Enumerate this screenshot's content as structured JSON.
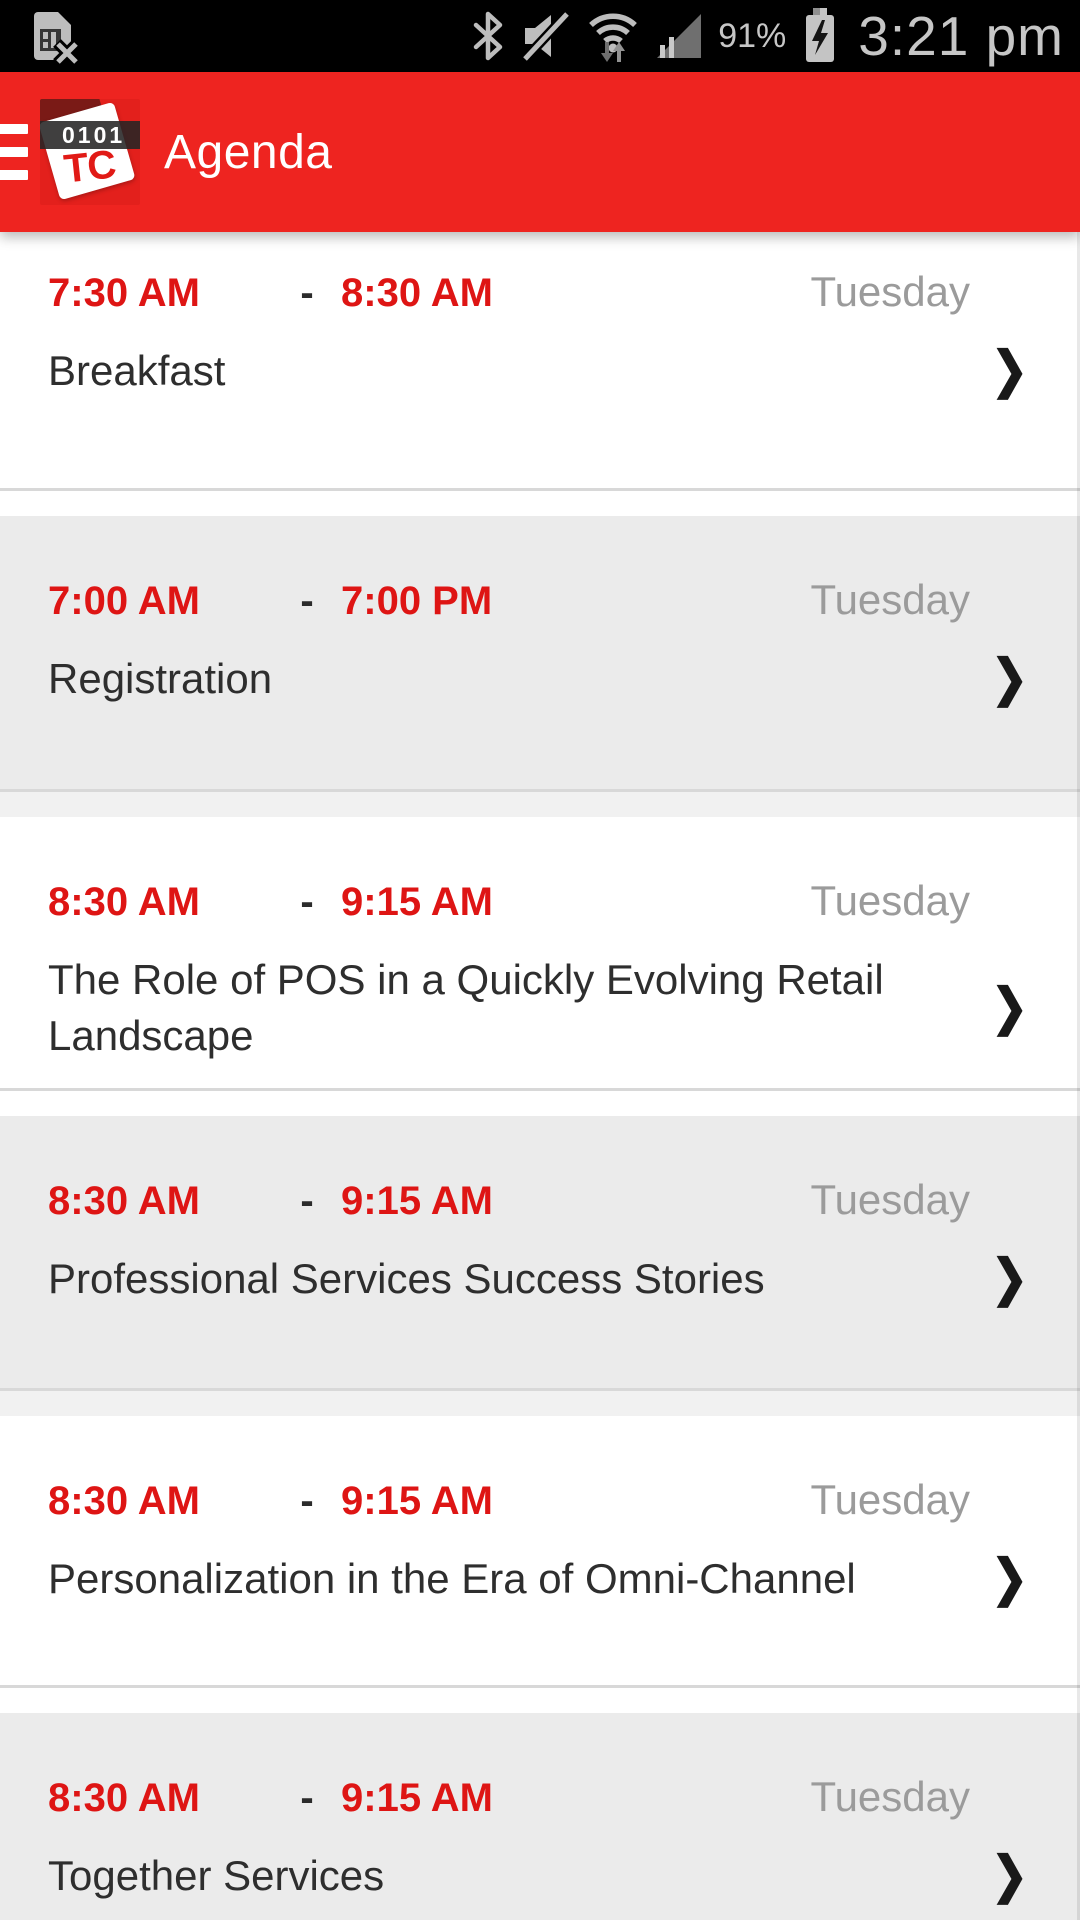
{
  "status_bar": {
    "battery_percent": "91%",
    "time": "3:21 pm"
  },
  "header": {
    "title": "Agenda",
    "logo": {
      "binary": "0101",
      "letters": "TC"
    }
  },
  "agenda": {
    "separator": "-",
    "items": [
      {
        "start": "7:30 AM",
        "end": "8:30 AM",
        "day": "Tuesday",
        "title": "Breakfast"
      },
      {
        "start": "7:00 AM",
        "end": "7:00 PM",
        "day": "Tuesday",
        "title": "Registration"
      },
      {
        "start": "8:30 AM",
        "end": "9:15 AM",
        "day": "Tuesday",
        "title": "The Role of POS in a Quickly Evolving Retail Landscape"
      },
      {
        "start": "8:30 AM",
        "end": "9:15 AM",
        "day": "Tuesday",
        "title": "Professional Services Success Stories"
      },
      {
        "start": "8:30 AM",
        "end": "9:15 AM",
        "day": "Tuesday",
        "title": "Personalization in the Era of Omni-Channel"
      },
      {
        "start": "8:30 AM",
        "end": "9:15 AM",
        "day": "Tuesday",
        "title": "Together Services"
      }
    ]
  },
  "icons": {
    "chevron_right": "❯"
  },
  "colors": {
    "header_red": "#EE2420",
    "time_red": "#DE1514",
    "day_gray": "#9B9B9B",
    "title_dark": "#2E2E2E",
    "card_alt": "#EBEBEB"
  }
}
